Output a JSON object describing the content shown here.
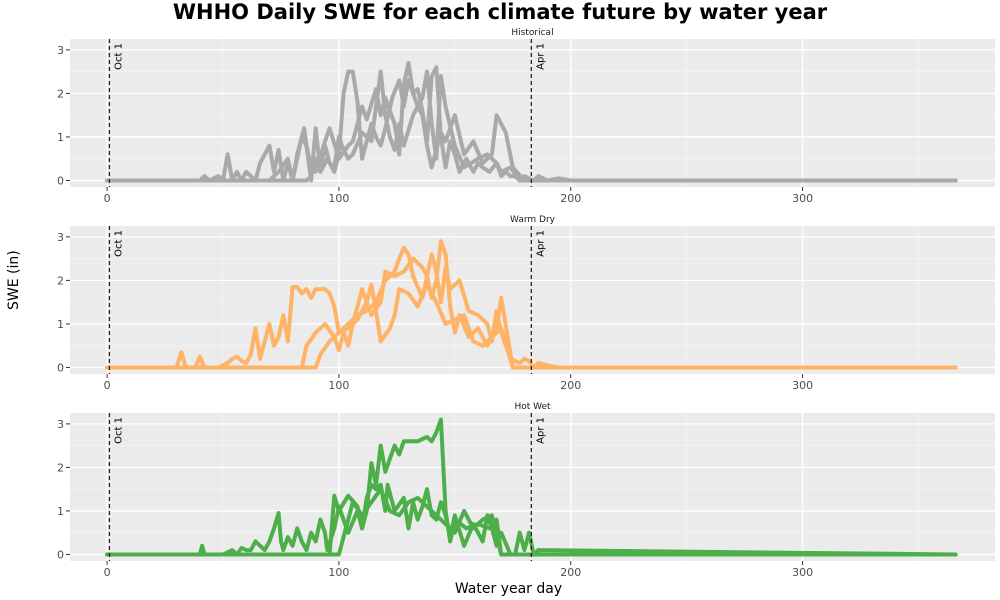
{
  "chart_data": {
    "type": "line",
    "title": "WHHO Daily SWE for each climate future by water year",
    "xlabel": "Water year day",
    "ylabel": "SWE (in)",
    "xlim": [
      -16,
      383
    ],
    "ylim": [
      -0.15,
      3.25
    ],
    "x_ticks": [
      0,
      100,
      200,
      300
    ],
    "y_ticks": [
      0,
      1,
      2,
      3
    ],
    "grid": true,
    "vlines": [
      {
        "x": 1,
        "label": "Oct 1"
      },
      {
        "x": 183,
        "label": "Apr 1"
      }
    ],
    "panels": [
      {
        "title": "Historical",
        "color": "#a9a9a9",
        "series": [
          {
            "x": [
              0,
              40,
              42,
              44,
              48,
              50,
              52,
              54,
              56,
              58,
              60,
              64,
              66,
              70,
              72,
              74,
              76,
              78,
              80,
              82,
              85,
              88,
              90,
              92,
              95,
              98,
              100,
              102,
              104,
              106,
              108,
              110,
              112,
              114,
              116,
              118,
              120,
              123,
              126,
              128,
              130,
              132,
              134,
              136,
              138,
              140,
              142,
              144,
              146,
              148,
              150,
              152,
              155,
              158,
              160,
              162,
              165,
              168,
              170,
              172,
              174,
              176,
              178,
              180,
              182,
              184,
              186,
              190,
              195,
              200,
              366
            ],
            "y": [
              0,
              0,
              0.1,
              0,
              0.1,
              0,
              0.6,
              0,
              0.2,
              0,
              0.2,
              0,
              0.4,
              0.8,
              0.2,
              0.7,
              0,
              0.4,
              0,
              0.6,
              1.2,
              0,
              1.2,
              0.2,
              0.5,
              0.2,
              0.6,
              2.0,
              2.5,
              2.5,
              1.8,
              0.5,
              0.9,
              1.3,
              1.0,
              0.8,
              1.2,
              1.9,
              2.3,
              1.7,
              2.3,
              2.0,
              2.1,
              1.6,
              0.9,
              2.4,
              2.6,
              1.0,
              0.3,
              0.9,
              0.6,
              0.2,
              0.5,
              0.2,
              0.4,
              0.3,
              0.2,
              0.4,
              0.1,
              0.2,
              0.1,
              0.1,
              0,
              0.1,
              0.05,
              0,
              0.1,
              0,
              0.05,
              0,
              0
            ]
          },
          {
            "x": [
              0,
              70,
              74,
              78,
              80,
              84,
              86,
              88,
              90,
              94,
              96,
              100,
              104,
              106,
              110,
              112,
              116,
              118,
              120,
              124,
              126,
              128,
              130,
              132,
              134,
              136,
              138,
              140,
              144,
              146,
              150,
              154,
              158,
              162,
              166,
              168,
              172,
              175,
              180,
              366
            ],
            "y": [
              0,
              0,
              0.2,
              0.5,
              0,
              1.0,
              0.8,
              0.3,
              0.2,
              0.9,
              1.2,
              0.5,
              0.8,
              0.9,
              1.7,
              1.4,
              2.1,
              1.5,
              1.9,
              1.3,
              0.6,
              2.2,
              2.7,
              2.0,
              1.7,
              1.5,
              0.8,
              0.3,
              1.1,
              0.9,
              1.5,
              0.6,
              0.9,
              0.4,
              0.6,
              1.5,
              1.1,
              0.3,
              0,
              0
            ]
          },
          {
            "x": [
              0,
              86,
              88,
              90,
              92,
              94,
              96,
              98,
              100,
              102,
              104,
              106,
              110,
              114,
              118,
              120,
              122,
              124,
              126,
              128,
              132,
              136,
              138,
              140,
              142,
              144,
              146,
              150,
              154,
              160,
              164,
              168,
              170,
              174,
              178,
              366
            ],
            "y": [
              0,
              0,
              0.1,
              0.5,
              0.2,
              0.8,
              0.4,
              0.3,
              1.0,
              0.7,
              0.5,
              0.6,
              1.1,
              0.9,
              2.5,
              1.5,
              1.0,
              0.7,
              1.3,
              0.8,
              1.5,
              1.9,
              2.5,
              1.3,
              0.5,
              2.4,
              1.7,
              0.8,
              0.3,
              0.5,
              0.6,
              0.4,
              0.2,
              0.3,
              0,
              0
            ]
          }
        ]
      },
      {
        "title": "Warm Dry",
        "color": "#ffb366",
        "series": [
          {
            "x": [
              0,
              30,
              32,
              34,
              38,
              40,
              42,
              48,
              52,
              54,
              56,
              58,
              60,
              62,
              64,
              66,
              68,
              70,
              72,
              74,
              76,
              78,
              80,
              82,
              84,
              86,
              88,
              90,
              92,
              94,
              96,
              98,
              100,
              104,
              108,
              112,
              116,
              120,
              124,
              126,
              128,
              130,
              132,
              136,
              140,
              142,
              144,
              146,
              148,
              152,
              156,
              160,
              164,
              166,
              168,
              170,
              174,
              178,
              180,
              182,
              184,
              186,
              190,
              195,
              366
            ],
            "y": [
              0,
              0,
              0.35,
              0,
              0,
              0.25,
              0,
              0,
              0.1,
              0.2,
              0.25,
              0.15,
              0.1,
              0.3,
              0.9,
              0.2,
              0.6,
              1.0,
              0.5,
              0.7,
              1.2,
              0.6,
              1.85,
              1.85,
              1.7,
              1.8,
              1.6,
              1.8,
              1.8,
              1.8,
              1.7,
              1.4,
              0.8,
              1.0,
              1.2,
              1.3,
              1.5,
              2.0,
              2.2,
              2.5,
              2.75,
              2.6,
              2.1,
              1.6,
              2.6,
              2.2,
              1.5,
              2.3,
              1.8,
              2.0,
              1.3,
              1.2,
              1.0,
              0.6,
              1.3,
              0.8,
              0.2,
              0.1,
              0.2,
              0.15,
              0,
              0.1,
              0.05,
              0,
              0
            ]
          },
          {
            "x": [
              0,
              84,
              86,
              90,
              94,
              98,
              100,
              102,
              104,
              106,
              110,
              114,
              118,
              120,
              124,
              128,
              132,
              134,
              136,
              138,
              140,
              142,
              144,
              146,
              148,
              150,
              152,
              156,
              160,
              164,
              168,
              170,
              175,
              366
            ],
            "y": [
              0,
              0,
              0.5,
              0.8,
              1.0,
              0.7,
              0.4,
              0.8,
              0.5,
              1.0,
              1.8,
              1.2,
              1.5,
              2.2,
              2.1,
              2.2,
              2.5,
              2.4,
              2.3,
              2.1,
              1.6,
              2.0,
              2.9,
              2.6,
              1.4,
              0.8,
              1.2,
              0.7,
              0.9,
              0.5,
              0.9,
              1.6,
              0,
              0
            ]
          },
          {
            "x": [
              0,
              90,
              92,
              96,
              100,
              104,
              108,
              112,
              114,
              116,
              118,
              122,
              124,
              126,
              130,
              134,
              138,
              142,
              146,
              150,
              154,
              158,
              162,
              166,
              170,
              175,
              366
            ],
            "y": [
              0,
              0,
              0.3,
              0.6,
              0.8,
              0.9,
              1.1,
              1.5,
              1.9,
              1.3,
              0.6,
              0.9,
              1.2,
              1.8,
              1.7,
              1.4,
              1.9,
              1.5,
              1.0,
              1.1,
              1.2,
              0.6,
              0.5,
              0.7,
              0.9,
              0,
              0
            ]
          }
        ]
      },
      {
        "title": "Hot Wet",
        "color": "#4daf4a",
        "series": [
          {
            "x": [
              0,
              40,
              41,
              42,
              50,
              54,
              56,
              58,
              60,
              62,
              64,
              66,
              68,
              70,
              72,
              74,
              75,
              76,
              78,
              80,
              82,
              84,
              86,
              88,
              90,
              92,
              94,
              95,
              98,
              100,
              104,
              108,
              110,
              112,
              114,
              116,
              118,
              120,
              121,
              124,
              128,
              130,
              132,
              134,
              136,
              138,
              140,
              142,
              144,
              146,
              148,
              150,
              154,
              158,
              162,
              164,
              166,
              168,
              170,
              174,
              176,
              178,
              180,
              182,
              184,
              186,
              366
            ],
            "y": [
              0,
              0,
              0.2,
              0,
              0,
              0.1,
              0,
              0.15,
              0.1,
              0.1,
              0.3,
              0.2,
              0.1,
              0.3,
              0.6,
              0.95,
              0.3,
              0.1,
              0.4,
              0.2,
              0.6,
              0.3,
              0.1,
              0.5,
              0.3,
              0.8,
              0.5,
              0.1,
              0.6,
              1.1,
              0.5,
              1.0,
              0.6,
              1.3,
              1.6,
              1.5,
              1.6,
              1.0,
              1.6,
              1.0,
              1.3,
              0.6,
              1.2,
              0.8,
              1.1,
              1.5,
              0.9,
              0.8,
              1.2,
              0.9,
              0.4,
              0.9,
              0.2,
              0.7,
              0.3,
              0.9,
              0.6,
              0.2,
              0.5,
              0,
              0,
              0.5,
              0.1,
              0.5,
              0,
              0.1,
              0
            ]
          },
          {
            "x": [
              0,
              96,
              98,
              100,
              104,
              108,
              110,
              112,
              114,
              116,
              118,
              120,
              122,
              124,
              126,
              128,
              130,
              132,
              134,
              136,
              138,
              140,
              142,
              144,
              146,
              148,
              150,
              155,
              160,
              165,
              168,
              170,
              366
            ],
            "y": [
              0,
              0,
              1.35,
              1.0,
              1.35,
              1.1,
              0.6,
              1.0,
              2.1,
              1.6,
              2.5,
              1.9,
              2.2,
              2.5,
              2.3,
              2.6,
              2.6,
              2.6,
              2.6,
              2.65,
              2.7,
              2.6,
              2.8,
              3.1,
              1.0,
              0.3,
              0.8,
              0.6,
              0.7,
              0.6,
              0.8,
              0,
              0
            ]
          },
          {
            "x": [
              0,
              100,
              104,
              106,
              110,
              114,
              118,
              122,
              126,
              130,
              134,
              138,
              140,
              142,
              146,
              150,
              154,
              158,
              162,
              166,
              170,
              366
            ],
            "y": [
              0,
              0,
              0.8,
              1.2,
              0.9,
              1.2,
              1.5,
              1.0,
              0.9,
              1.2,
              1.3,
              1.1,
              1.0,
              0.9,
              0.7,
              0.5,
              1.0,
              0.6,
              0.8,
              0.9,
              0,
              0
            ]
          }
        ]
      }
    ]
  }
}
